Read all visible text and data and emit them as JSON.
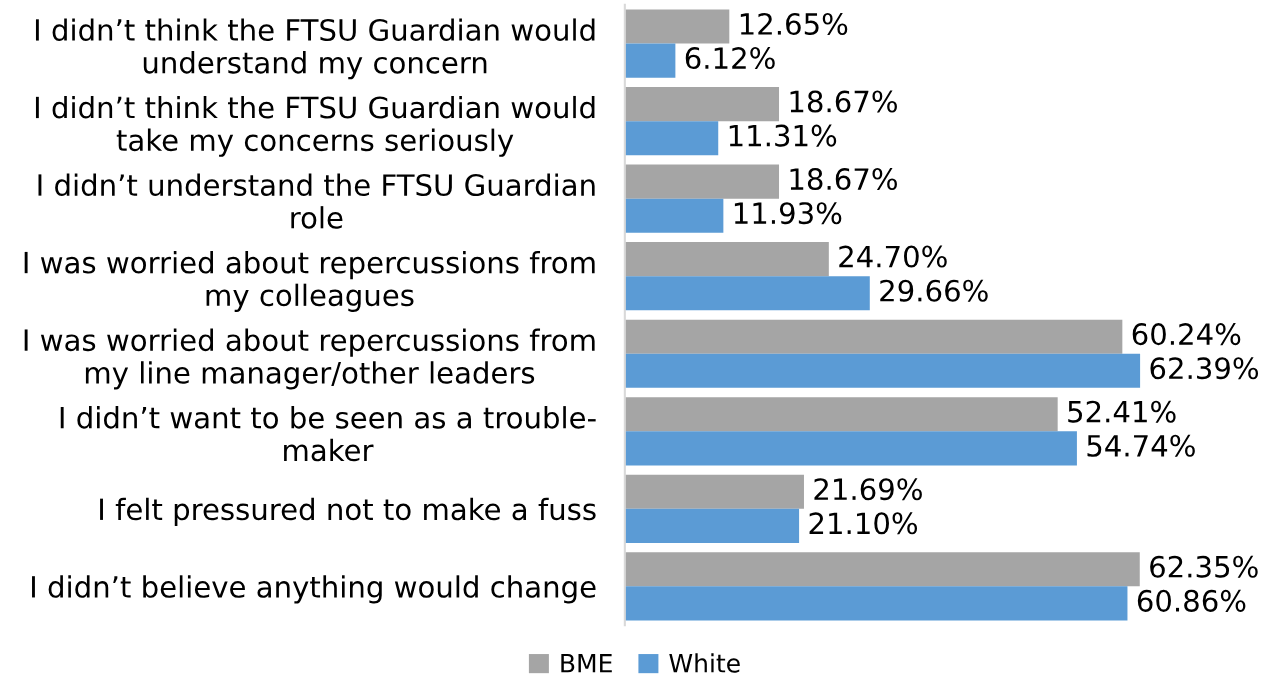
{
  "chart_data": {
    "type": "bar",
    "orientation": "horizontal",
    "categories": [
      "I didn’t think the FTSU Guardian would\nunderstand my concern",
      "I didn’t think the FTSU Guardian would\ntake my concerns seriously",
      "I didn’t understand the FTSU Guardian\nrole",
      "I was worried about repercussions from\nmy colleagues",
      "I was worried about repercussions from\nmy line manager/other leaders",
      "I didn’t want to be seen as a trouble-\nmaker",
      "I felt pressured not to make a fuss",
      "I didn’t believe anything would change"
    ],
    "series": [
      {
        "name": "BME",
        "color": "#a5a5a5",
        "values": [
          12.65,
          18.67,
          18.67,
          24.7,
          60.24,
          52.41,
          21.69,
          62.35
        ],
        "value_labels": [
          "12.65%",
          "18.67%",
          "18.67%",
          "24.70%",
          "60.24%",
          "52.41%",
          "21.69%",
          "62.35%"
        ]
      },
      {
        "name": "White",
        "color": "#5b9bd5",
        "values": [
          6.12,
          11.31,
          11.93,
          29.66,
          62.39,
          54.74,
          21.1,
          60.86
        ],
        "value_labels": [
          "6.12%",
          "11.31%",
          "11.93%",
          "29.66%",
          "62.39%",
          "54.74%",
          "21.10%",
          "60.86%"
        ]
      }
    ],
    "tick_labels": "y",
    "grid": false,
    "legend": "bottom"
  }
}
